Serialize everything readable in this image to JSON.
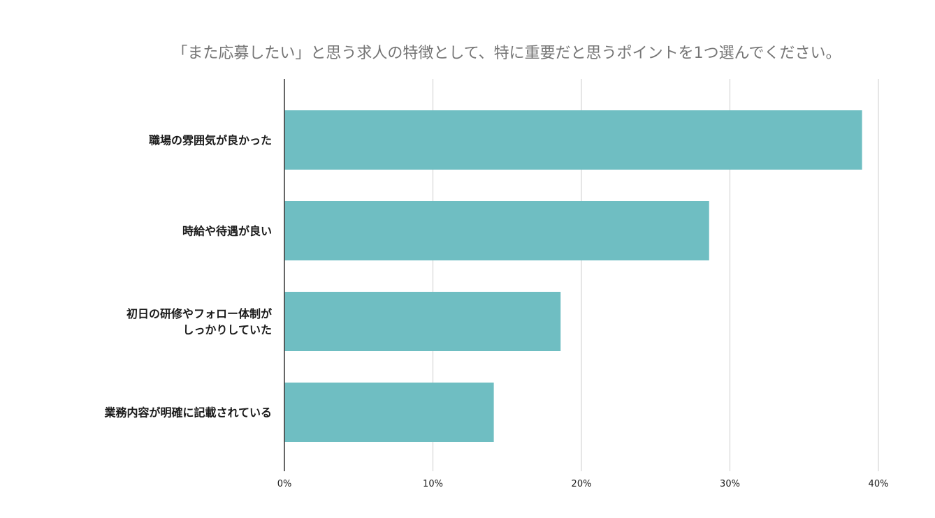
{
  "colors": {
    "bar": "#6fbec2",
    "grid": "#d6d6d6",
    "axis": "#333333",
    "title": "#757575",
    "label": "#1a1a1a"
  },
  "chart_data": {
    "type": "bar",
    "orientation": "horizontal",
    "title": "「また応募したい」と思う求人の特徴として、特に重要だと思うポイントを1つ選んでください。",
    "categories": [
      "職場の雰囲気が良かった",
      "時給や待遇が良い",
      "初日の研修やフォロー体制が\nしっかりしていた",
      "業務内容が明確に記載されている"
    ],
    "values": [
      38.9,
      28.6,
      18.6,
      14.1
    ],
    "unit": "%",
    "xlim": [
      0,
      40
    ],
    "xticks": [
      0,
      10,
      20,
      30,
      40
    ],
    "xtick_labels": [
      "0%",
      "10%",
      "20%",
      "30%",
      "40%"
    ],
    "grid": true,
    "legend": "none"
  }
}
